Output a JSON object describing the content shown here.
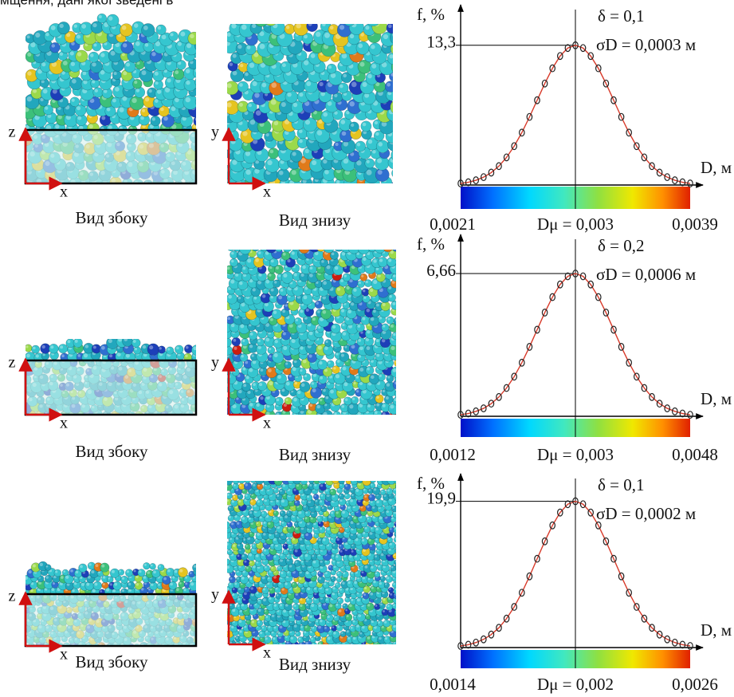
{
  "header": {
    "text": "мщення,  дані  якої  зведені  в"
  },
  "rows": [
    {
      "side_view": {
        "caption": "Вид збоку",
        "axis_up": "z",
        "axis_right": "x"
      },
      "bottom_view": {
        "caption": "Вид знизу",
        "axis_up": "y",
        "axis_right": "x"
      }
    },
    {
      "side_view": {
        "caption": "Вид збоку",
        "axis_up": "z",
        "axis_right": "x"
      },
      "bottom_view": {
        "caption": "Вид знизу",
        "axis_up": "y",
        "axis_right": "x"
      }
    },
    {
      "side_view": {
        "caption": "Вид збоку",
        "axis_up": "z",
        "axis_right": "x"
      },
      "bottom_view": {
        "caption": "Вид знизу",
        "axis_up": "y",
        "axis_right": "x"
      }
    }
  ],
  "chart_data": [
    {
      "type": "line",
      "ylabel": "f, %",
      "xlabel": "D, м",
      "annotations": [
        "δ = 0,1",
        "σD = 0,0003 м"
      ],
      "color": "#d83a2a",
      "marker_color": "#222222",
      "colorbar": "jet",
      "xlim": [
        0.0021,
        0.0039
      ],
      "ylim": [
        0,
        16.7
      ],
      "xticks": [
        {
          "value": 0.0021,
          "label": "0,0021"
        },
        {
          "value": 0.003,
          "label": "Dμ = 0,003"
        },
        {
          "value": 0.0039,
          "label": "0,0039"
        }
      ],
      "yticks": [
        {
          "value": 13.3,
          "label": "13,3"
        }
      ],
      "x": [
        0.0021,
        0.00216,
        0.00222,
        0.00228,
        0.00234,
        0.0024,
        0.00246,
        0.00252,
        0.00258,
        0.00264,
        0.0027,
        0.00276,
        0.00282,
        0.00288,
        0.00294,
        0.003,
        0.00306,
        0.00312,
        0.00318,
        0.00324,
        0.0033,
        0.00336,
        0.00342,
        0.00348,
        0.00354,
        0.0036,
        0.00366,
        0.00372,
        0.00378,
        0.00384,
        0.0039
      ],
      "values": [
        0.15,
        0.26,
        0.45,
        0.75,
        1.18,
        1.8,
        2.63,
        3.7,
        4.99,
        6.48,
        8.07,
        9.66,
        11.11,
        12.28,
        13.04,
        13.3,
        13.04,
        12.28,
        11.11,
        9.66,
        8.07,
        6.48,
        4.99,
        3.7,
        2.63,
        1.8,
        1.18,
        0.75,
        0.45,
        0.26,
        0.15
      ]
    },
    {
      "type": "line",
      "ylabel": "f, %",
      "xlabel": "D, м",
      "annotations": [
        "δ = 0,2",
        "σD = 0,0006 м"
      ],
      "color": "#d83a2a",
      "marker_color": "#222222",
      "colorbar": "jet",
      "xlim": [
        0.0012,
        0.0048
      ],
      "ylim": [
        0,
        8.26
      ],
      "xticks": [
        {
          "value": 0.0012,
          "label": "0,0012"
        },
        {
          "value": 0.003,
          "label": "Dμ = 0,003"
        },
        {
          "value": 0.0048,
          "label": "0,0048"
        }
      ],
      "yticks": [
        {
          "value": 6.66,
          "label": "6,66"
        }
      ],
      "x": [
        0.0012,
        0.00132,
        0.00144,
        0.00156,
        0.00168,
        0.0018,
        0.00192,
        0.00204,
        0.00216,
        0.00228,
        0.0024,
        0.00252,
        0.00264,
        0.00276,
        0.00288,
        0.003,
        0.00312,
        0.00324,
        0.00336,
        0.00348,
        0.0036,
        0.00372,
        0.00384,
        0.00396,
        0.00408,
        0.0042,
        0.00432,
        0.00444,
        0.00456,
        0.00468,
        0.0048
      ],
      "values": [
        0.07,
        0.13,
        0.23,
        0.37,
        0.59,
        0.9,
        1.32,
        1.85,
        2.5,
        3.24,
        4.04,
        4.84,
        5.56,
        6.15,
        6.53,
        6.66,
        6.53,
        6.15,
        5.56,
        4.84,
        4.04,
        3.24,
        2.5,
        1.85,
        1.32,
        0.9,
        0.59,
        0.37,
        0.23,
        0.13,
        0.07
      ]
    },
    {
      "type": "line",
      "ylabel": "f, %",
      "xlabel": "D, м",
      "annotations": [
        "δ = 0,1",
        "σD = 0,0002 м"
      ],
      "color": "#d83a2a",
      "marker_color": "#222222",
      "colorbar": "jet",
      "xlim": [
        0.0014,
        0.0026
      ],
      "ylim": [
        0,
        23
      ],
      "xticks": [
        {
          "value": 0.0014,
          "label": "0,0014"
        },
        {
          "value": 0.002,
          "label": "Dμ = 0,002"
        },
        {
          "value": 0.0026,
          "label": "0,0026"
        }
      ],
      "yticks": [
        {
          "value": 19.9,
          "label": "19,9"
        }
      ],
      "x": [
        0.0014,
        0.00144,
        0.00148,
        0.00152,
        0.00156,
        0.0016,
        0.00164,
        0.00168,
        0.00172,
        0.00176,
        0.0018,
        0.00184,
        0.00188,
        0.00192,
        0.00196,
        0.002,
        0.00204,
        0.00208,
        0.00212,
        0.00216,
        0.0022,
        0.00224,
        0.00228,
        0.00232,
        0.00236,
        0.0024,
        0.00244,
        0.00248,
        0.00252,
        0.00256,
        0.0026
      ],
      "values": [
        0.22,
        0.39,
        0.68,
        1.12,
        1.77,
        2.69,
        3.94,
        5.53,
        7.46,
        9.69,
        12.08,
        14.45,
        16.62,
        18.37,
        19.5,
        19.9,
        19.5,
        18.37,
        16.62,
        14.45,
        12.08,
        9.69,
        7.46,
        5.53,
        3.94,
        2.69,
        1.77,
        1.12,
        0.68,
        0.39,
        0.22
      ]
    }
  ]
}
